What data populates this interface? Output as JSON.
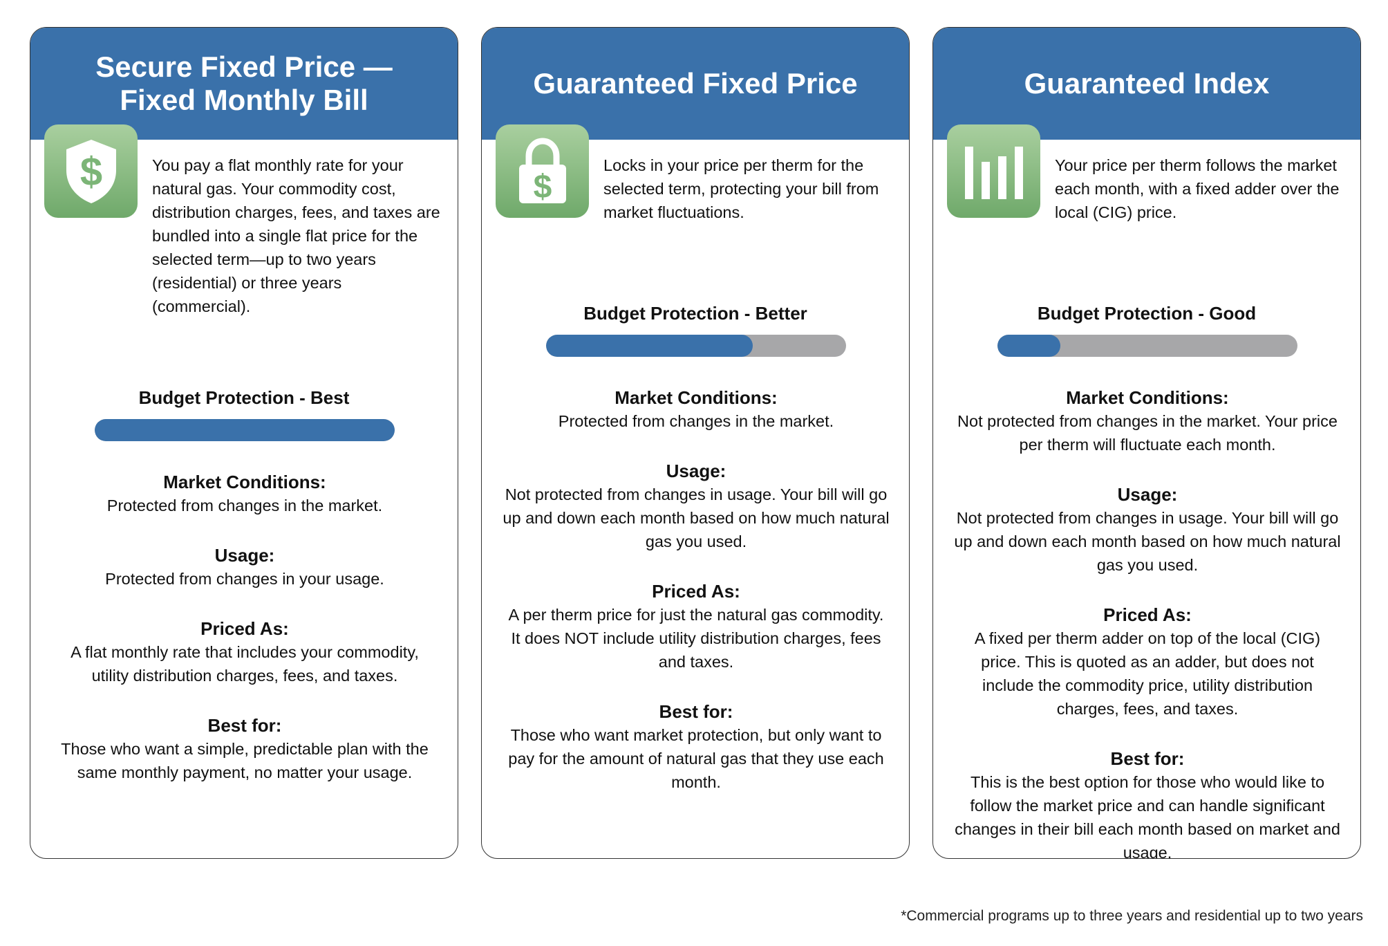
{
  "brand": {
    "header_color": "#3a71aa",
    "icon_green": "#7cb577",
    "track_gray": "#a7a7a9"
  },
  "cards": [
    {
      "title": "Secure Fixed Price — Fixed Monthly Bill",
      "icon": "shield-dollar-icon",
      "intro": "You pay a flat monthly rate for your natural gas. Your commodity cost, distribution charges, fees, and taxes are bundled into a single flat price for the selected term—up to two years (residential) or three years (commercial).",
      "budget_label": "Budget Protection - Best",
      "budget_level": 1.0,
      "market_heading": "Market Conditions:",
      "market_text": "Protected from changes in the market.",
      "usage_heading": "Usage:",
      "usage_text": "Protected from changes in your usage.",
      "priced_heading": "Priced As:",
      "priced_text": "A flat monthly rate that includes your commodity, utility distribution charges, fees, and taxes.",
      "best_heading": "Best for:",
      "best_text": "Those who want a simple, predictable plan with the same monthly payment, no matter your usage."
    },
    {
      "title": "Guaranteed Fixed Price",
      "icon": "lock-dollar-icon",
      "intro": "Locks in your price per therm for the selected term, protecting your bill from market fluctuations.",
      "budget_label": "Budget Protection - Better",
      "budget_level": 0.69,
      "market_heading": "Market Conditions:",
      "market_text": "Protected from changes in the market.",
      "usage_heading": "Usage:",
      "usage_text": "Not protected from changes in usage. Your bill will go up and down each month based on how much natural gas you used.",
      "priced_heading": "Priced As:",
      "priced_text": "A per therm price for just the natural gas commodity. It does NOT include utility distribution charges, fees and taxes.",
      "best_heading": "Best for:",
      "best_text": "Those who want market protection, but only want to pay for the amount of natural gas that they use each month."
    },
    {
      "title": "Guaranteed Index",
      "icon": "bar-chart-icon",
      "intro": "Your price per therm follows the market each month, with a fixed adder over the local (CIG) price.",
      "budget_label": "Budget Protection - Good",
      "budget_level": 0.21,
      "market_heading": "Market Conditions:",
      "market_text": "Not protected from changes in the market. Your price per therm will fluctuate each month.",
      "usage_heading": "Usage:",
      "usage_text": "Not protected from changes in usage. Your bill will go up and down each month based on how much natural gas you used.",
      "priced_heading": "Priced As:",
      "priced_text": "A fixed per therm adder on top of the local (CIG) price. This is quoted as an adder, but does not include the commodity price, utility distribution charges, fees, and taxes.",
      "best_heading": "Best for:",
      "best_text": "This is the best option for those who would like to follow the market price and can handle significant changes in their bill each month based on market and usage."
    }
  ],
  "footnote": "*Commercial programs up to three years and residential up to two years"
}
